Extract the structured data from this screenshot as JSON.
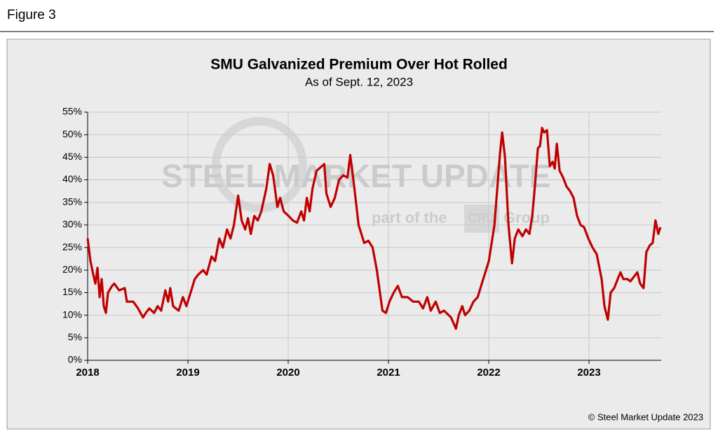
{
  "figure_label": "Figure 3",
  "chart_data": {
    "type": "line",
    "title": "SMU Galvanized Premium Over Hot Rolled",
    "subtitle": "As of Sept. 12, 2023",
    "watermark": [
      "STEEL MARKET UPDATE",
      "part of the",
      "CRU",
      "Group"
    ],
    "credit": "© Steel Market Update 2023",
    "color": "#c00000",
    "grid": true,
    "x": [
      2018.0,
      2018.028,
      2018.056,
      2018.077,
      2018.098,
      2018.119,
      2018.14,
      2018.161,
      2018.182,
      2018.203,
      2018.244,
      2018.265,
      2018.314,
      2018.37,
      2018.391,
      2018.454,
      2018.503,
      2018.552,
      2018.58,
      2018.615,
      2018.663,
      2018.698,
      2018.733,
      2018.775,
      2018.803,
      2018.824,
      2018.852,
      2018.908,
      2018.95,
      2018.985,
      2019.027,
      2019.068,
      2019.103,
      2019.152,
      2019.187,
      2019.236,
      2019.271,
      2019.313,
      2019.348,
      2019.39,
      2019.425,
      2019.459,
      2019.501,
      2019.536,
      2019.571,
      2019.599,
      2019.627,
      2019.662,
      2019.697,
      2019.732,
      2019.781,
      2019.816,
      2019.85,
      2019.892,
      2019.92,
      2019.955,
      2020.004,
      2020.046,
      2020.088,
      2020.13,
      2020.158,
      2020.186,
      2020.214,
      2020.242,
      2020.283,
      2020.36,
      2020.381,
      2020.423,
      2020.465,
      2020.507,
      2020.549,
      2020.591,
      2020.619,
      2020.661,
      2020.702,
      2020.73,
      2020.758,
      2020.8,
      2020.842,
      2020.884,
      2020.94,
      2020.975,
      2021.01,
      2021.052,
      2021.093,
      2021.135,
      2021.191,
      2021.247,
      2021.303,
      2021.345,
      2021.387,
      2021.422,
      2021.471,
      2021.512,
      2021.554,
      2021.624,
      2021.673,
      2021.701,
      2021.736,
      2021.764,
      2021.806,
      2021.848,
      2021.89,
      2021.931,
      2021.973,
      2022.001,
      2022.029,
      2022.057,
      2022.085,
      2022.113,
      2022.134,
      2022.162,
      2022.197,
      2022.232,
      2022.26,
      2022.295,
      2022.336,
      2022.371,
      2022.406,
      2022.434,
      2022.462,
      2022.49,
      2022.511,
      2022.532,
      2022.553,
      2022.581,
      2022.609,
      2022.637,
      2022.658,
      2022.679,
      2022.707,
      2022.742,
      2022.776,
      2022.811,
      2022.846,
      2022.881,
      2022.916,
      2022.951,
      2022.993,
      2023.035,
      2023.077,
      2023.126,
      2023.154,
      2023.188,
      2023.216,
      2023.251,
      2023.286,
      2023.314,
      2023.342,
      2023.384,
      2023.412,
      2023.447,
      2023.482,
      2023.51,
      2023.544,
      2023.572,
      2023.607,
      2023.635,
      2023.663,
      2023.691,
      2023.712
    ],
    "values": [
      27,
      22,
      19,
      17,
      20.5,
      14,
      18,
      12,
      10.5,
      15,
      16.5,
      17,
      15.5,
      16,
      13,
      13,
      11.5,
      9.5,
      10.5,
      11.5,
      10.5,
      12,
      11,
      15.5,
      13,
      16,
      12,
      11,
      14,
      12,
      15,
      18,
      19,
      20,
      19,
      23,
      22,
      27,
      25,
      29,
      27,
      30,
      36.5,
      31,
      29,
      31.5,
      28,
      32,
      31,
      33,
      38,
      43.5,
      41,
      34,
      36,
      33,
      32,
      31,
      30.5,
      33,
      31,
      36,
      33,
      38,
      42,
      43.5,
      37,
      34,
      36,
      40,
      41,
      40.5,
      45.5,
      38,
      30,
      28,
      26,
      26.5,
      25,
      20,
      11,
      10.5,
      13,
      15,
      16.5,
      14,
      14,
      13,
      13,
      11.5,
      14,
      11,
      13,
      10.5,
      11,
      9.5,
      7,
      10,
      12,
      10,
      11,
      13,
      14,
      17,
      20,
      22,
      26,
      30,
      38,
      46,
      50.5,
      45,
      30,
      21.5,
      27,
      29,
      27.5,
      29,
      28,
      32,
      39,
      47,
      47.5,
      51.5,
      50.5,
      51,
      43,
      44,
      42.5,
      48,
      42,
      40.5,
      38.5,
      37.5,
      36,
      32,
      30,
      29.5,
      27,
      25,
      23.5,
      18,
      12,
      9,
      15,
      16,
      18,
      19.5,
      18,
      18,
      17.5,
      18.5,
      19.5,
      17,
      16,
      24,
      25.5,
      26,
      31,
      28,
      29.5
    ],
    "xlim": [
      2018,
      2023.72
    ],
    "xticks": [
      2018,
      2019,
      2020,
      2021,
      2022,
      2023
    ],
    "ylim": [
      0,
      55
    ],
    "yticks": [
      {
        "value": 0,
        "label": "0%"
      },
      {
        "value": 5,
        "label": "5%"
      },
      {
        "value": 10,
        "label": "10%"
      },
      {
        "value": 15,
        "label": "15%"
      },
      {
        "value": 20,
        "label": "20%"
      },
      {
        "value": 25,
        "label": "25%"
      },
      {
        "value": 30,
        "label": "30%"
      },
      {
        "value": 35,
        "label": "35%"
      },
      {
        "value": 40,
        "label": "40%"
      },
      {
        "value": 45,
        "label": "45%"
      },
      {
        "value": 50,
        "label": "50%"
      },
      {
        "value": 55,
        "label": "55%"
      }
    ]
  }
}
